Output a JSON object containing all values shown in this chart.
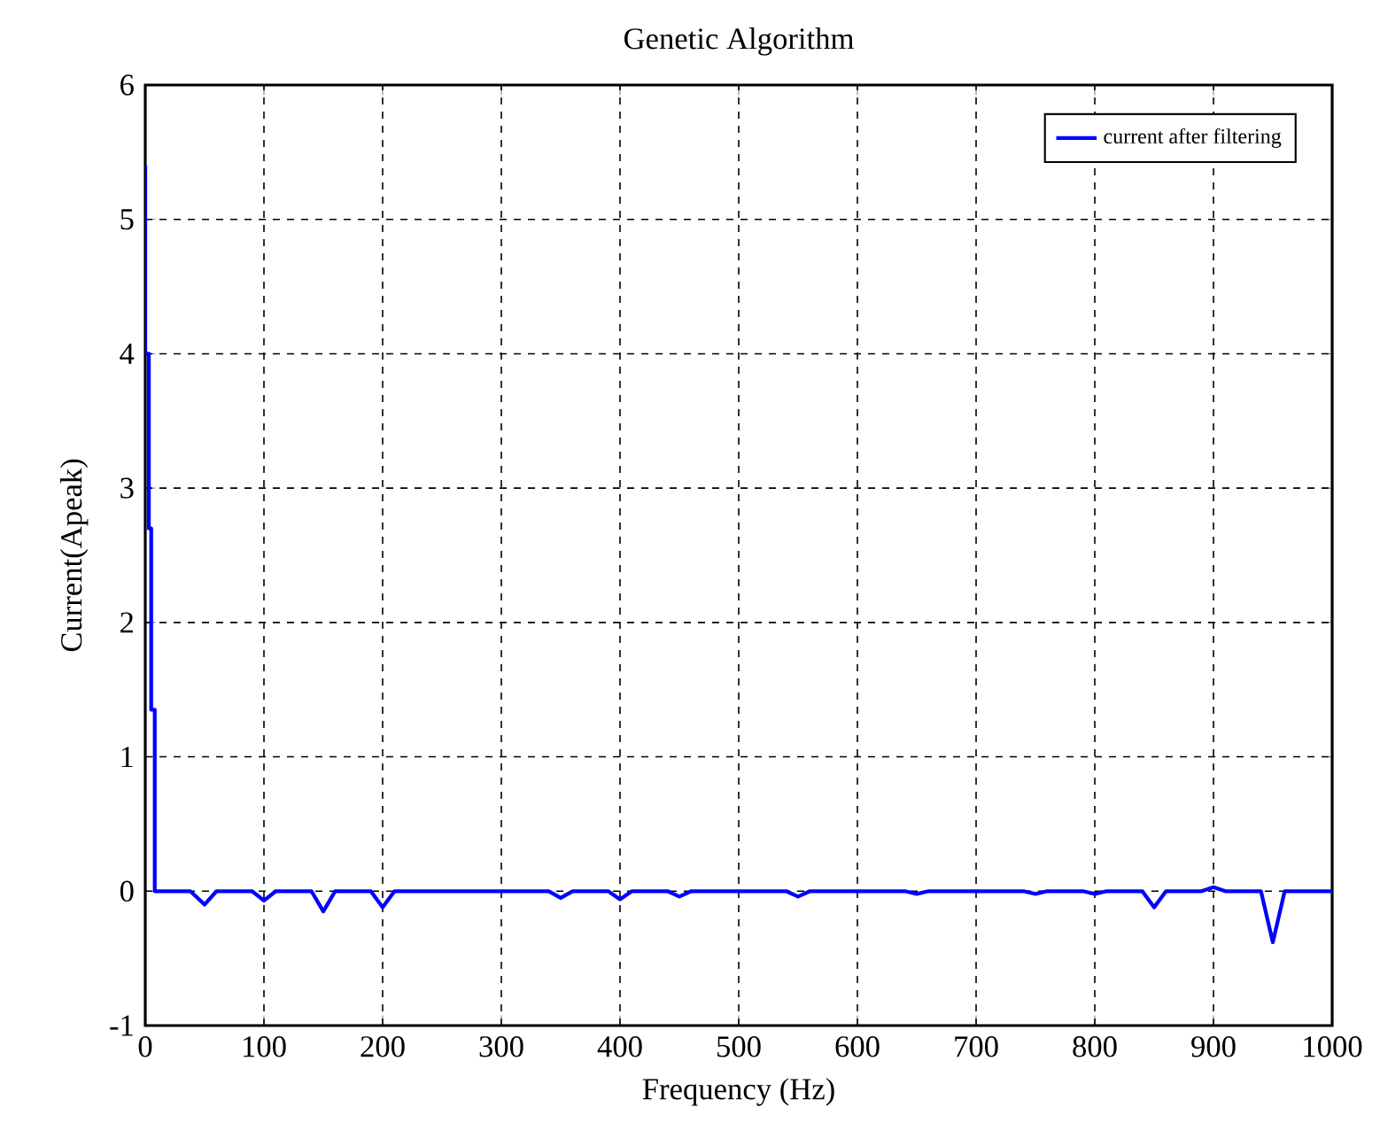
{
  "chart_data": {
    "type": "line",
    "title": "Genetic  Algorithm",
    "xlabel": "Frequency (Hz)",
    "ylabel": "Current(Apeak)",
    "xlim": [
      0,
      1000
    ],
    "ylim": [
      -1,
      6
    ],
    "xticks": [
      0,
      100,
      200,
      300,
      400,
      500,
      600,
      700,
      800,
      900,
      1000
    ],
    "yticks": [
      -1,
      0,
      1,
      2,
      3,
      4,
      5,
      6
    ],
    "grid": true,
    "legend": "top right",
    "line_style": "solid",
    "series": [
      {
        "name": "current after filtering",
        "color": "#0000ff",
        "x": [
          0,
          0,
          1,
          2,
          3,
          3,
          5,
          5,
          8,
          8,
          38,
          50,
          60,
          90,
          100,
          110,
          140,
          150,
          160,
          190,
          200,
          210,
          340,
          350,
          360,
          390,
          400,
          410,
          440,
          450,
          460,
          540,
          550,
          560,
          640,
          650,
          660,
          740,
          750,
          760,
          790,
          800,
          810,
          840,
          850,
          860,
          890,
          900,
          910,
          940,
          950,
          960,
          1000
        ],
        "values": [
          5.4,
          4.0,
          4.0,
          4.0,
          4.0,
          2.7,
          2.7,
          1.35,
          1.35,
          0,
          0,
          -0.1,
          0,
          0,
          -0.07,
          0,
          0,
          -0.15,
          0,
          0,
          -0.12,
          0,
          0,
          -0.05,
          0,
          0,
          -0.06,
          0,
          0,
          -0.04,
          0,
          0,
          -0.04,
          0,
          0,
          -0.02,
          0,
          0,
          -0.02,
          0,
          0,
          -0.02,
          0,
          0,
          -0.12,
          0,
          0,
          0.03,
          0,
          0,
          -0.38,
          0,
          0
        ]
      }
    ]
  }
}
